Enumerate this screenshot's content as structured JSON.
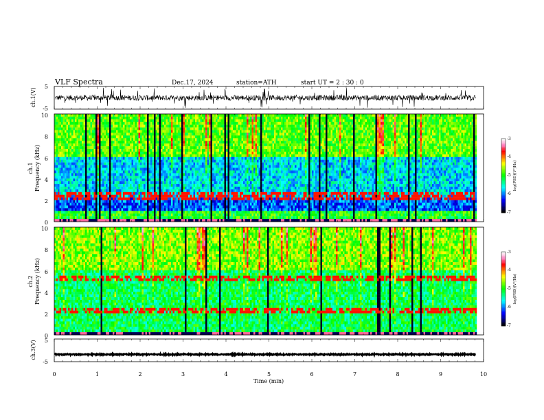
{
  "header": {
    "title": "VLF  Spectra",
    "date": "Dec.17, 2024",
    "station": "station=ATH",
    "start": "start  UT  =    2  : 30 : 0"
  },
  "chart_data": [
    {
      "type": "line",
      "name": "ch1-waveform",
      "ylabel": "ch.1(V)",
      "yticks": [
        "5",
        "-5"
      ],
      "ylim": [
        -5,
        5
      ],
      "xlim": [
        0,
        10
      ],
      "color": "#000000",
      "signal": {
        "baseline": 0,
        "noise_amplitude": 1.2,
        "spike_amplitude": 4.5,
        "x_end": 9.82
      }
    },
    {
      "type": "heatmap",
      "name": "ch1-spectrogram",
      "ylabel_line1": "ch.1",
      "ylabel_line2": "Frequency  (kHz)",
      "yticks": [
        "10",
        "8",
        "6",
        "4",
        "2",
        "0"
      ],
      "ylim": [
        0,
        10
      ],
      "xlim": [
        0,
        10
      ],
      "x_end": 9.82,
      "colorbar": {
        "label": "log(PSD)(V²/Hz)",
        "ticks": [
          "-3",
          "-4",
          "-5",
          "-6",
          "-7"
        ],
        "range": [
          -7,
          -3
        ]
      }
    },
    {
      "type": "heatmap",
      "name": "ch2-spectrogram",
      "ylabel_line1": "ch.2",
      "ylabel_line2": "Frequency  (kHz)",
      "yticks": [
        "10",
        "8",
        "6",
        "4",
        "2",
        "0"
      ],
      "ylim": [
        0,
        10
      ],
      "xlim": [
        0,
        10
      ],
      "x_end": 9.82,
      "colorbar": {
        "label": "log(PSD)(V²/Hz)",
        "ticks": [
          "-3",
          "-4",
          "-5",
          "-6",
          "-7"
        ],
        "range": [
          -7,
          -3
        ]
      }
    },
    {
      "type": "line",
      "name": "ch3-waveform",
      "ylabel": "ch.3(V)",
      "yticks": [
        "5",
        "-5"
      ],
      "ylim": [
        -5,
        5
      ],
      "xlim": [
        0,
        10
      ],
      "color": "#000000",
      "signal": {
        "baseline": -1.8,
        "noise_amplitude": 0.25,
        "spike_amplitude": 0,
        "x_end": 9.82
      }
    }
  ],
  "xaxis": {
    "label": "Time  (min)",
    "ticks": [
      "0",
      "1",
      "2",
      "3",
      "4",
      "5",
      "6",
      "7",
      "8",
      "9",
      "10"
    ]
  },
  "colormap": [
    "#000000",
    "#00008b",
    "#0000ff",
    "#0080ff",
    "#00ffff",
    "#00ff80",
    "#00ff00",
    "#80ff00",
    "#ffff00",
    "#ff8000",
    "#ff0000",
    "#ff80c0",
    "#ffffff"
  ]
}
